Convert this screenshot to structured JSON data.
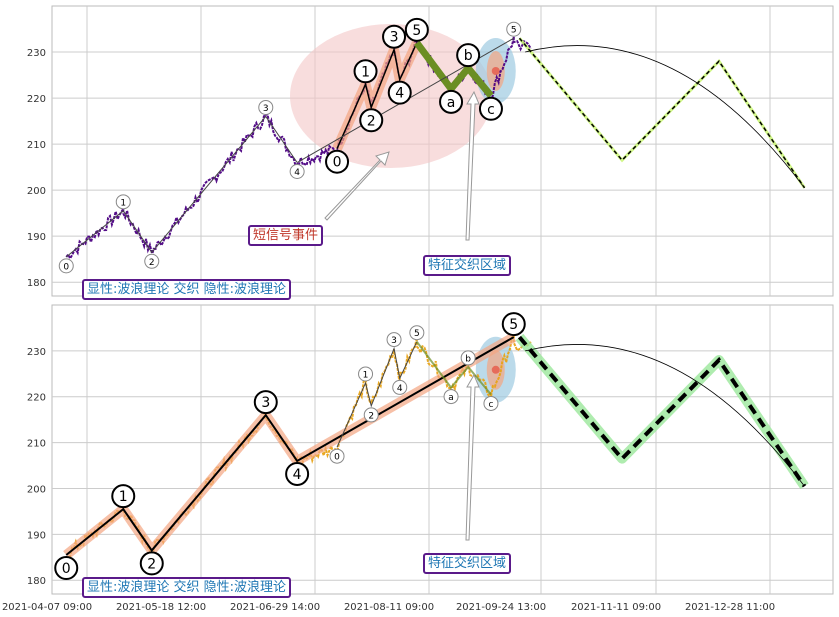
{
  "chart_data": [
    {
      "type": "line",
      "panel": "top",
      "ylim": [
        177,
        240
      ],
      "yticks": [
        180,
        190,
        200,
        210,
        220,
        230
      ],
      "grid": true,
      "wave_points": [
        {
          "label": "0",
          "x": 0.5,
          "y": 185.5,
          "style": "small"
        },
        {
          "label": "1",
          "x": 10.5,
          "y": 195.5,
          "style": "small"
        },
        {
          "label": "2",
          "x": 15.5,
          "y": 186.5,
          "style": "small"
        },
        {
          "label": "3",
          "x": 35.5,
          "y": 216,
          "style": "small"
        },
        {
          "label": "4",
          "x": 41,
          "y": 206,
          "style": "small"
        },
        {
          "label": "0",
          "x": 48,
          "y": 209,
          "style": "large"
        },
        {
          "label": "1",
          "x": 53,
          "y": 223,
          "style": "large"
        },
        {
          "label": "2",
          "x": 54,
          "y": 218,
          "style": "large"
        },
        {
          "label": "3",
          "x": 58,
          "y": 230.5,
          "style": "large"
        },
        {
          "label": "4",
          "x": 59,
          "y": 224,
          "style": "large"
        },
        {
          "label": "5",
          "x": 62,
          "y": 232,
          "style": "large"
        },
        {
          "label": "a",
          "x": 68,
          "y": 222,
          "style": "large"
        },
        {
          "label": "b",
          "x": 71,
          "y": 226.5,
          "style": "large"
        },
        {
          "label": "c",
          "x": 75,
          "y": 220.5,
          "style": "large"
        },
        {
          "label": "5",
          "x": 79,
          "y": 233,
          "style": "small"
        }
      ],
      "forecast": [
        {
          "x": 80,
          "y": 233
        },
        {
          "x": 98,
          "y": 206.5
        },
        {
          "x": 115,
          "y": 228
        },
        {
          "x": 130,
          "y": 200.5
        }
      ],
      "annotations": [
        {
          "text": "短信号事件",
          "color": "#c0392b"
        },
        {
          "text": "特征交织区域",
          "color": "#1f77b4"
        },
        {
          "text": "显性:波浪理论 交织 隐性:波浪理论",
          "color": "#1f77b4"
        }
      ]
    },
    {
      "type": "line",
      "panel": "bottom",
      "ylim": [
        177,
        240
      ],
      "yticks": [
        180,
        190,
        200,
        210,
        220,
        230
      ],
      "grid": true,
      "wave_points": [
        {
          "label": "0",
          "x": 0.5,
          "y": 185.5,
          "style": "large"
        },
        {
          "label": "1",
          "x": 10.5,
          "y": 195.5,
          "style": "large"
        },
        {
          "label": "2",
          "x": 15.5,
          "y": 186.5,
          "style": "large"
        },
        {
          "label": "3",
          "x": 35.5,
          "y": 216,
          "style": "large"
        },
        {
          "label": "4",
          "x": 41,
          "y": 206,
          "style": "large"
        },
        {
          "label": "0",
          "x": 48,
          "y": 209,
          "style": "small"
        },
        {
          "label": "1",
          "x": 53,
          "y": 223,
          "style": "small"
        },
        {
          "label": "2",
          "x": 54,
          "y": 218,
          "style": "small"
        },
        {
          "label": "3",
          "x": 58,
          "y": 230.5,
          "style": "small"
        },
        {
          "label": "4",
          "x": 59,
          "y": 224,
          "style": "small"
        },
        {
          "label": "5",
          "x": 62,
          "y": 232,
          "style": "small"
        },
        {
          "label": "a",
          "x": 68,
          "y": 222,
          "style": "small"
        },
        {
          "label": "b",
          "x": 71,
          "y": 226.5,
          "style": "small"
        },
        {
          "label": "c",
          "x": 75,
          "y": 220.5,
          "style": "small"
        },
        {
          "label": "5",
          "x": 79,
          "y": 233,
          "style": "large"
        }
      ],
      "forecast": [
        {
          "x": 80,
          "y": 233
        },
        {
          "x": 98,
          "y": 206.5
        },
        {
          "x": 115,
          "y": 228
        },
        {
          "x": 130,
          "y": 200.5
        }
      ],
      "annotations": [
        {
          "text": "特征交织区域",
          "color": "#1f77b4"
        },
        {
          "text": "显性:波浪理论 交织 隐性:波浪理论",
          "color": "#1f77b4"
        }
      ]
    }
  ],
  "xticks": [
    "2021-04-07 09:00",
    "2021-05-18 12:00",
    "2021-06-29 14:00",
    "2021-08-11 09:00",
    "2021-09-24 13:00",
    "2021-11-11 09:00",
    "2021-12-28 11:00"
  ],
  "labels": {
    "short_signal": "短信号事件",
    "feature_zone_top": "特征交织区域",
    "feature_zone_bottom": "特征交织区域",
    "legend_top": "显性:波浪理论 交织 隐性:波浪理论",
    "legend_bottom": "显性:波浪理论 交织 隐性:波浪理论"
  },
  "colors": {
    "price_top": "#4b0082",
    "price_bottom": "#e8a317",
    "wave_fill": "#f4a582",
    "zone_blue": "#9ecae1",
    "zone_pink": "#f4c6c6",
    "forecast_green": "#9be79b",
    "corr_green": "#6b8e23",
    "box_border": "#5a1a8a"
  }
}
